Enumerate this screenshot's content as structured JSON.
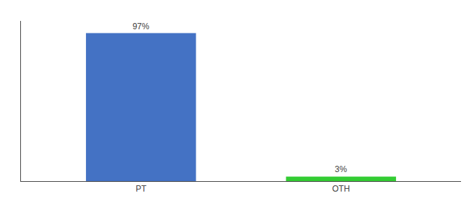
{
  "chart_data": {
    "type": "bar",
    "categories": [
      "PT",
      "OTH"
    ],
    "values": [
      97,
      3
    ],
    "value_labels": [
      "97%",
      "3%"
    ],
    "colors": [
      "#4472c4",
      "#33cc33"
    ],
    "ylim": [
      0,
      105
    ],
    "grid": false,
    "data_labels": true,
    "tick_labels": "x"
  }
}
